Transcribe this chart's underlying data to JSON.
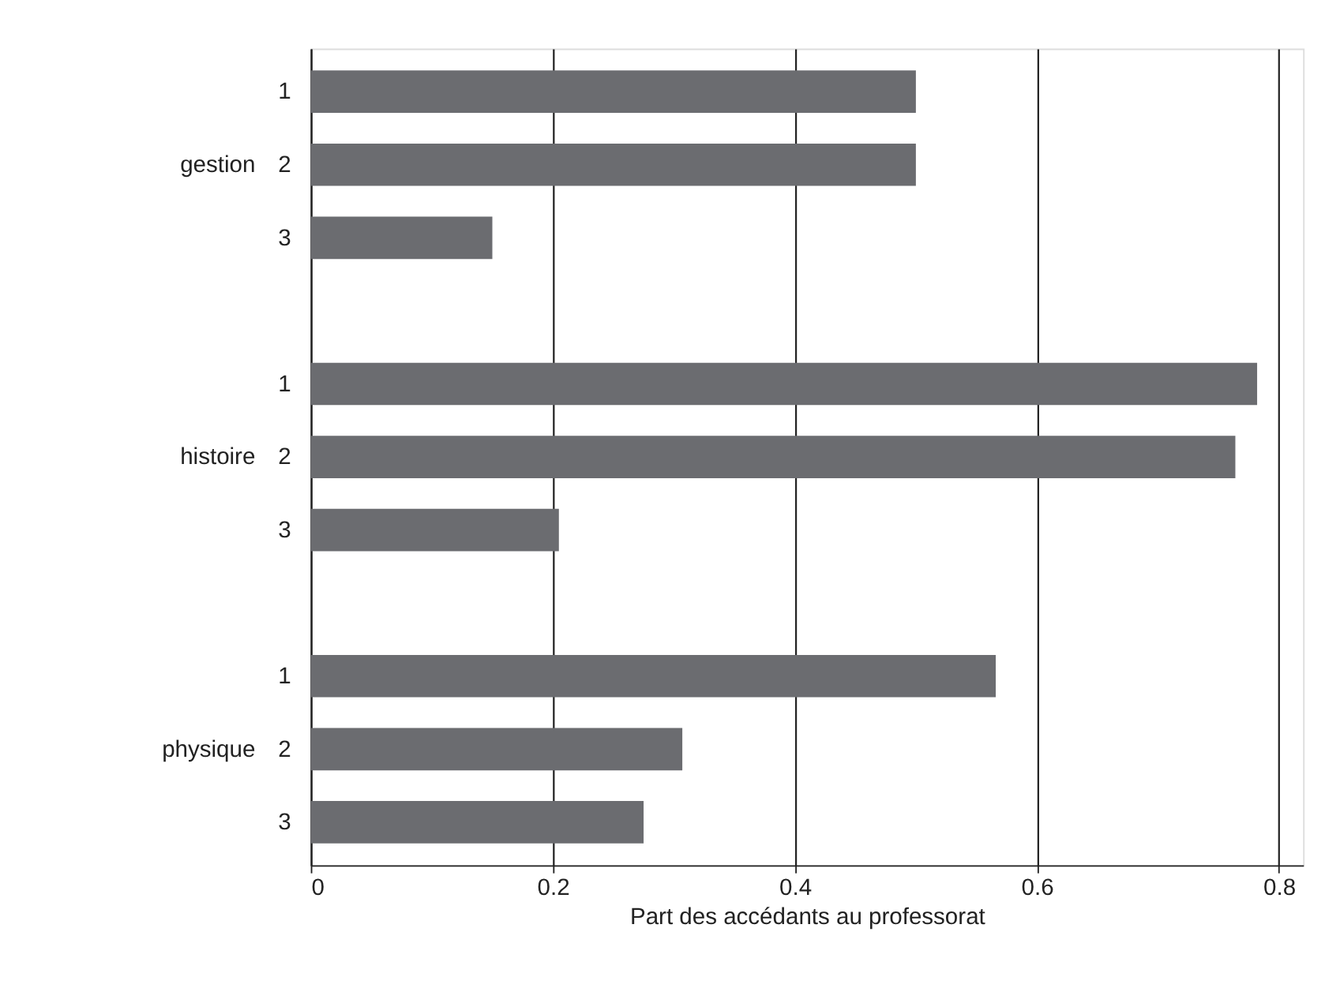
{
  "chart_data": {
    "type": "bar",
    "orientation": "horizontal",
    "categories": [
      "1",
      "2",
      "3",
      null,
      "1",
      "2",
      "3",
      null,
      "1",
      "2",
      "3"
    ],
    "values": [
      0.5,
      0.5,
      0.15,
      null,
      0.782,
      0.764,
      0.205,
      null,
      0.566,
      0.307,
      0.275
    ],
    "color": "#6b6c70",
    "xlabel": "Part des accédants au professorat",
    "xlim": [
      0,
      0.82
    ],
    "xticks": [
      0,
      0.2,
      0.4,
      0.6,
      0.8
    ],
    "grid": "x",
    "annotations": [
      "gestion",
      "histoire",
      "physique"
    ]
  }
}
